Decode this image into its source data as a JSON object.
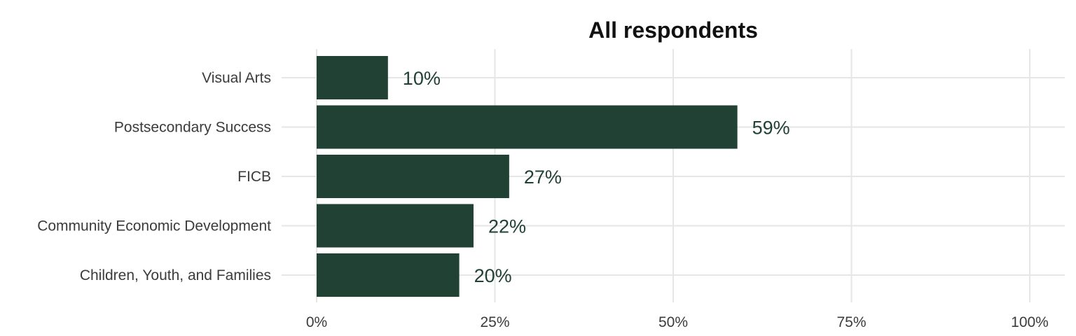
{
  "chart_data": {
    "type": "bar",
    "orientation": "horizontal",
    "title": "All respondents",
    "xlabel": "",
    "ylabel": "",
    "categories": [
      "Visual Arts",
      "Postsecondary Success",
      "FICB",
      "Community Economic Development",
      "Children, Youth, and Families"
    ],
    "values": [
      10,
      59,
      27,
      22,
      20
    ],
    "value_labels": [
      "10%",
      "59%",
      "27%",
      "22%",
      "20%"
    ],
    "xlim": [
      0,
      100
    ],
    "x_ticks": [
      0,
      25,
      50,
      75,
      100
    ],
    "x_tick_labels": [
      "0%",
      "25%",
      "50%",
      "75%",
      "100%"
    ],
    "grid": true,
    "legend": "none",
    "bar_color": "#214134",
    "label_color": "#214134"
  }
}
